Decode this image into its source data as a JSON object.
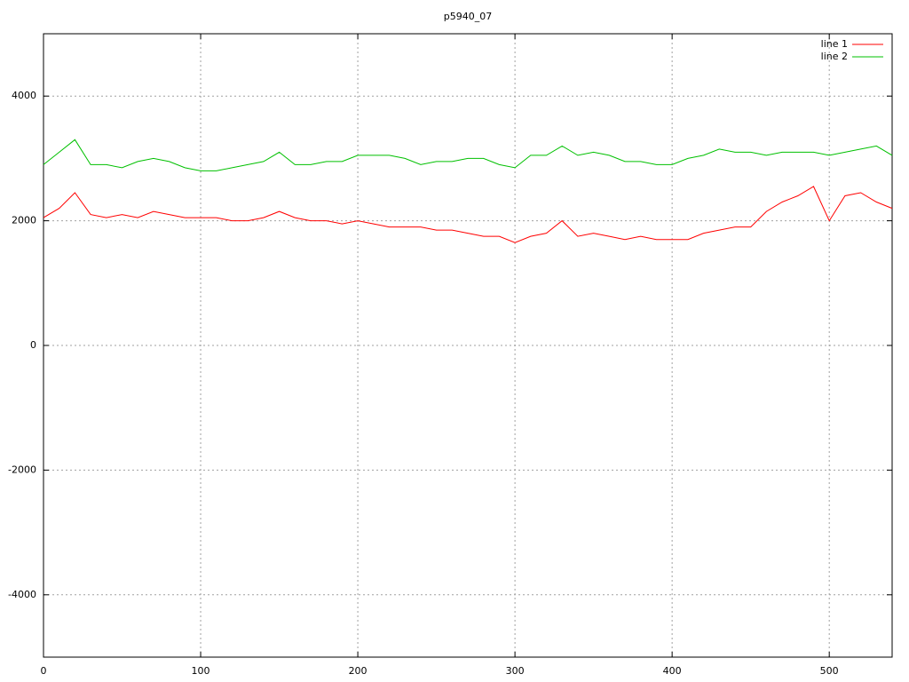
{
  "chart_data": {
    "type": "line",
    "title": "p5940_07",
    "x": [
      0,
      10,
      20,
      30,
      40,
      50,
      60,
      70,
      80,
      90,
      100,
      110,
      120,
      130,
      140,
      150,
      160,
      170,
      180,
      190,
      200,
      210,
      220,
      230,
      240,
      250,
      260,
      270,
      280,
      290,
      300,
      310,
      320,
      330,
      340,
      350,
      360,
      370,
      380,
      390,
      400,
      410,
      420,
      430,
      440,
      450,
      460,
      470,
      480,
      490,
      500,
      510,
      520,
      530,
      540
    ],
    "series": [
      {
        "name": "line 1",
        "color": "#ff0000",
        "values": [
          2050,
          2200,
          2450,
          2100,
          2050,
          2100,
          2050,
          2150,
          2100,
          2050,
          2050,
          2050,
          2000,
          2000,
          2050,
          2150,
          2050,
          2000,
          2000,
          1950,
          2000,
          1950,
          1900,
          1900,
          1900,
          1850,
          1850,
          1800,
          1750,
          1750,
          1650,
          1750,
          1800,
          2000,
          1750,
          1800,
          1750,
          1700,
          1750,
          1700,
          1700,
          1700,
          1800,
          1850,
          1900,
          1900,
          2150,
          2300,
          2400,
          2550,
          2000,
          2400,
          2450,
          2300,
          2200
        ]
      },
      {
        "name": "line 2",
        "color": "#00c000",
        "values": [
          2900,
          3100,
          3300,
          2900,
          2900,
          2850,
          2950,
          3000,
          2950,
          2850,
          2800,
          2800,
          2850,
          2900,
          2950,
          3100,
          2900,
          2900,
          2950,
          2950,
          3050,
          3050,
          3050,
          3000,
          2900,
          2950,
          2950,
          3000,
          3000,
          2900,
          2850,
          3050,
          3050,
          3200,
          3050,
          3100,
          3050,
          2950,
          2950,
          2900,
          2900,
          3000,
          3050,
          3150,
          3100,
          3100,
          3050,
          3100,
          3100,
          3100,
          3050,
          3100,
          3150,
          3200,
          3050
        ]
      }
    ],
    "xlim": [
      0,
      540
    ],
    "ylim": [
      -5000,
      5000
    ],
    "xticks": [
      0,
      100,
      200,
      300,
      400,
      500
    ],
    "yticks": [
      -4000,
      -2000,
      0,
      2000,
      4000
    ],
    "grid": true,
    "legend": "top-right"
  }
}
